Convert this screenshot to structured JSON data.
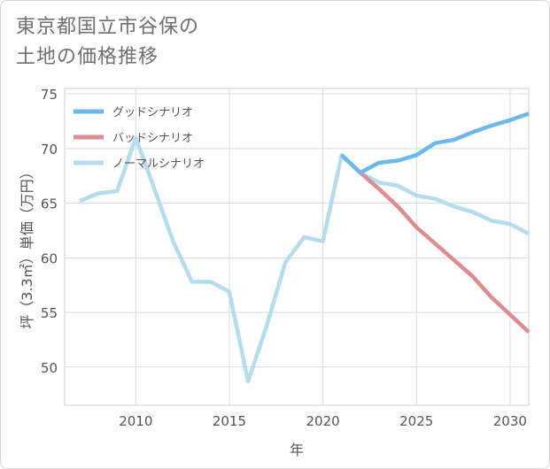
{
  "title_lines": [
    "東京都国立市谷保の",
    "土地の価格推移"
  ],
  "chart_data": {
    "type": "line",
    "xlabel": "年",
    "ylabel": "坪（3.3㎡）単価（万円）",
    "xlim": [
      2006.2,
      2031
    ],
    "ylim": [
      46.5,
      75.5
    ],
    "xticks": [
      2010,
      2015,
      2020,
      2025,
      2030
    ],
    "yticks": [
      50,
      55,
      60,
      65,
      70,
      75
    ],
    "grid": true,
    "legend_position": "top-left",
    "series": [
      {
        "name": "グッドシナリオ",
        "color": "#6cb8ea",
        "x": [
          2021,
          2022,
          2023,
          2024,
          2025,
          2026,
          2027,
          2028,
          2029,
          2030,
          2031
        ],
        "y": [
          69.4,
          67.8,
          68.7,
          68.9,
          69.4,
          70.5,
          70.8,
          71.5,
          72.1,
          72.6,
          73.2
        ]
      },
      {
        "name": "バッドシナリオ",
        "color": "#dd8c91",
        "x": [
          2021,
          2022,
          2023,
          2024,
          2025,
          2026,
          2027,
          2028,
          2029,
          2030,
          2031
        ],
        "y": [
          69.4,
          67.8,
          66.3,
          64.7,
          62.8,
          61.3,
          59.8,
          58.3,
          56.4,
          54.8,
          53.2
        ]
      },
      {
        "name": "ノーマルシナリオ",
        "color": "#b5dcec",
        "x": [
          2007,
          2008,
          2009,
          2010,
          2011,
          2012,
          2013,
          2014,
          2015,
          2016,
          2017,
          2018,
          2019,
          2020,
          2021,
          2022,
          2023,
          2024,
          2025,
          2026,
          2027,
          2028,
          2029,
          2030,
          2031
        ],
        "y": [
          65.2,
          65.9,
          66.1,
          71.0,
          66.3,
          61.5,
          57.8,
          57.8,
          56.9,
          48.7,
          53.8,
          59.6,
          61.9,
          61.5,
          69.4,
          67.8,
          66.9,
          66.6,
          65.7,
          65.4,
          64.7,
          64.2,
          63.4,
          63.1,
          62.2
        ]
      }
    ]
  }
}
